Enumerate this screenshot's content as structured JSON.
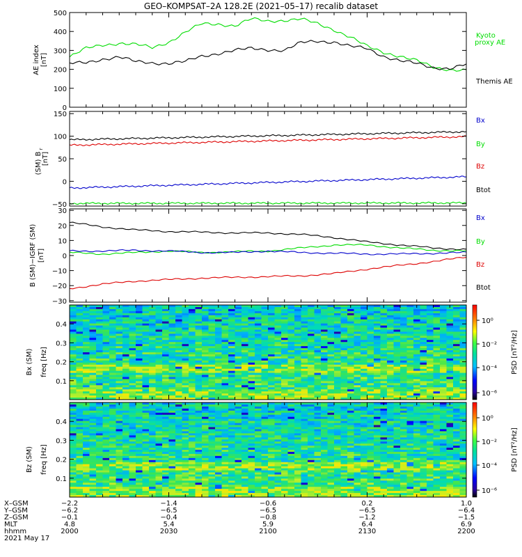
{
  "title": "GEO–KOMPSAT–2A 128.2E (2021–05–17) recalib dataset",
  "colors": {
    "black": "#000000",
    "green": "#00dd00",
    "blue": "#0000cc",
    "red": "#dd0000"
  },
  "chart_data": [
    {
      "id": "ae",
      "type": "line",
      "ylabel": [
        "AE index",
        "[nT]"
      ],
      "ylim": [
        0,
        500
      ],
      "yticks": [
        "0",
        "100",
        "200",
        "300",
        "400",
        "500"
      ],
      "grid": false,
      "legend": [
        {
          "label": "Kyoto",
          "color": "#00dd00"
        },
        {
          "label": "proxy AE",
          "color": "#00dd00"
        },
        {
          "label": "Themis AE",
          "color": "#000000"
        }
      ],
      "x": [
        0,
        5,
        10,
        15,
        20,
        25,
        30,
        35,
        40,
        45,
        50,
        55,
        60,
        65,
        70,
        75,
        80,
        85,
        90,
        95,
        100,
        105,
        110,
        115,
        120
      ],
      "series": [
        {
          "name": "Kyoto proxy AE",
          "color": "#00dd00",
          "values": [
            265,
            310,
            330,
            338,
            330,
            315,
            345,
            395,
            440,
            440,
            430,
            465,
            455,
            460,
            465,
            440,
            410,
            370,
            320,
            290,
            270,
            245,
            210,
            200,
            195
          ]
        },
        {
          "name": "Themis AE",
          "color": "#000000",
          "values": [
            230,
            235,
            255,
            265,
            240,
            235,
            232,
            240,
            270,
            285,
            300,
            310,
            305,
            300,
            340,
            350,
            345,
            320,
            310,
            270,
            245,
            230,
            210,
            205,
            225
          ]
        }
      ]
    },
    {
      "id": "b",
      "type": "line",
      "ylabel": [
        "B",
        "r",
        "(SM)",
        "[nT]"
      ],
      "ylim": [
        -55,
        155
      ],
      "yticks": [
        "−50",
        "0",
        "50",
        "100",
        "150"
      ],
      "grid": false,
      "legend": [
        {
          "label": "Bx",
          "color": "#0000cc"
        },
        {
          "label": "By",
          "color": "#00dd00"
        },
        {
          "label": "Bz",
          "color": "#dd0000"
        },
        {
          "label": "Btot",
          "color": "#000000"
        }
      ],
      "x": [
        0,
        120
      ],
      "series": [
        {
          "name": "Btot",
          "color": "#000000",
          "values": [
            92,
            110
          ]
        },
        {
          "name": "Bz",
          "color": "#dd0000",
          "values": [
            80,
            99
          ]
        },
        {
          "name": "Bx",
          "color": "#0000cc",
          "values": [
            -15,
            10
          ]
        },
        {
          "name": "By",
          "color": "#00dd00",
          "values": [
            -49,
            -48
          ]
        }
      ]
    },
    {
      "id": "db",
      "type": "line",
      "ylabel": [
        "B (SM)−IGRF (SM)",
        "[nT]"
      ],
      "ylim": [
        -31,
        31
      ],
      "yticks": [
        "−30",
        "−20",
        "−10",
        "0",
        "10",
        "20",
        "30"
      ],
      "grid": false,
      "legend": [
        {
          "label": "Bx",
          "color": "#0000cc"
        },
        {
          "label": "By",
          "color": "#00dd00"
        },
        {
          "label": "Bz",
          "color": "#dd0000"
        },
        {
          "label": "Btot",
          "color": "#000000"
        }
      ],
      "x": [
        0,
        10,
        20,
        30,
        40,
        50,
        60,
        70,
        80,
        90,
        100,
        110,
        120
      ],
      "series": [
        {
          "name": "Btot",
          "color": "#000000",
          "values": [
            22,
            19,
            17,
            16,
            15.5,
            15,
            15,
            14,
            12,
            9,
            7,
            5,
            4
          ]
        },
        {
          "name": "By",
          "color": "#00dd00",
          "values": [
            2,
            1,
            2,
            3,
            2,
            2.5,
            3,
            5,
            7,
            7,
            5,
            3.5,
            3
          ]
        },
        {
          "name": "Bx",
          "color": "#0000cc",
          "values": [
            3,
            3,
            3.5,
            3,
            2,
            2,
            3,
            2,
            1.5,
            1,
            1,
            1.5,
            2
          ]
        },
        {
          "name": "Bz",
          "color": "#dd0000",
          "values": [
            -22,
            -19,
            -17,
            -16,
            -15,
            -14.5,
            -14,
            -13.5,
            -12,
            -9,
            -6.5,
            -4,
            -1
          ]
        }
      ]
    },
    {
      "id": "spec_bx",
      "type": "heatmap",
      "ylabel": [
        "Bx (SM)",
        "freq  [Hz]"
      ],
      "ylim": [
        0,
        0.5
      ],
      "yticks": [
        "0.1",
        "0.2",
        "0.3",
        "0.4"
      ],
      "colorbar": {
        "label": "PSD [nT²/Hz]",
        "ticks": [
          "10⁰",
          "10⁻²",
          "10⁻⁴",
          "10⁻⁶"
        ]
      }
    },
    {
      "id": "spec_bz",
      "type": "heatmap",
      "ylabel": [
        "Bz (SM)",
        "freq  [Hz]"
      ],
      "ylim": [
        0,
        0.5
      ],
      "yticks": [
        "0.1",
        "0.2",
        "0.3",
        "0.4"
      ],
      "colorbar": {
        "label": "PSD [nT²/Hz]",
        "ticks": [
          "10⁰",
          "10⁻²",
          "10⁻⁴",
          "10⁻⁶"
        ]
      }
    }
  ],
  "ephemeris": {
    "row_labels": [
      "X–GSM",
      "Y–GSM",
      "Z–GSM",
      "MLT",
      "hhmm",
      "2021 May 17"
    ],
    "columns": [
      [
        "−2.2",
        "−6.2",
        "−0.1",
        "4.8",
        "2000"
      ],
      [
        "−1.4",
        "−6.5",
        "−0.4",
        "5.4",
        "2030"
      ],
      [
        "−0.6",
        "−6.5",
        "−0.8",
        "5.9",
        "2100"
      ],
      [
        "0.2",
        "−6.5",
        "−1.2",
        "6.4",
        "2130"
      ],
      [
        "1.0",
        "−6.4",
        "−1.5",
        "6.9",
        "2200"
      ]
    ]
  }
}
